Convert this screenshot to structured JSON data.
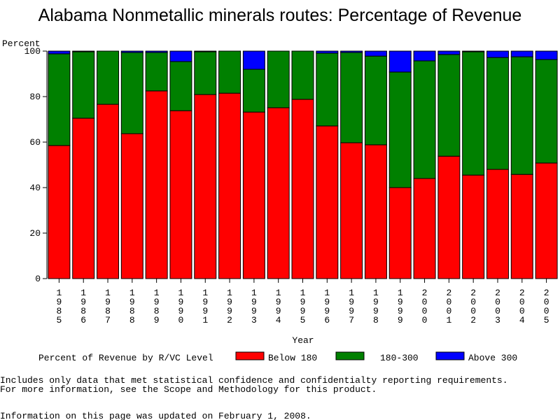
{
  "chart_data": {
    "type": "stacked-bar",
    "title": "Alabama Nonmetallic minerals routes: Percentage of Revenue",
    "y_label": "Percent",
    "x_label": "Year",
    "legend_title": "Percent of Revenue by R/VC Level",
    "categories": [
      "1985",
      "1986",
      "1987",
      "1988",
      "1989",
      "1990",
      "1991",
      "1992",
      "1993",
      "1994",
      "1995",
      "1996",
      "1997",
      "1998",
      "1999",
      "2000",
      "2001",
      "2002",
      "2003",
      "2004",
      "2005"
    ],
    "series": [
      {
        "name": "Below 180",
        "color": "#ff0000",
        "values": [
          58.5,
          70.5,
          76.6,
          63.7,
          82.5,
          73.8,
          80.9,
          81.5,
          73.2,
          75.1,
          78.8,
          67.1,
          59.7,
          58.8,
          40,
          44,
          53.8,
          45.5,
          48,
          45.8,
          50.8
        ]
      },
      {
        "name": "180-300",
        "color": "#008000",
        "values": [
          40.3,
          29.2,
          23.4,
          35.7,
          16.9,
          21.6,
          18.8,
          18.5,
          18.8,
          24.9,
          21.2,
          32,
          39.7,
          39,
          50.8,
          51.7,
          44.7,
          54.2,
          49.2,
          51.7,
          45.5
        ]
      },
      {
        "name": "Above 300",
        "color": "#0000ff",
        "values": [
          1.2,
          0.3,
          0,
          0.6,
          0.6,
          4.6,
          0.3,
          0,
          8,
          0,
          0,
          0.9,
          0.6,
          2.2,
          9.2,
          4.3,
          1.5,
          0.3,
          2.8,
          2.5,
          3.7
        ]
      }
    ],
    "ylim": [
      0,
      100
    ],
    "yticks": [
      0,
      20,
      40,
      60,
      80,
      100
    ],
    "footnotes": [
      "Includes only data that met statistical confidence and confidentialty reporting requirements.",
      "For more information, see the Scope and Methodology for this product.",
      "Information on this page was updated on February 1, 2008."
    ]
  }
}
